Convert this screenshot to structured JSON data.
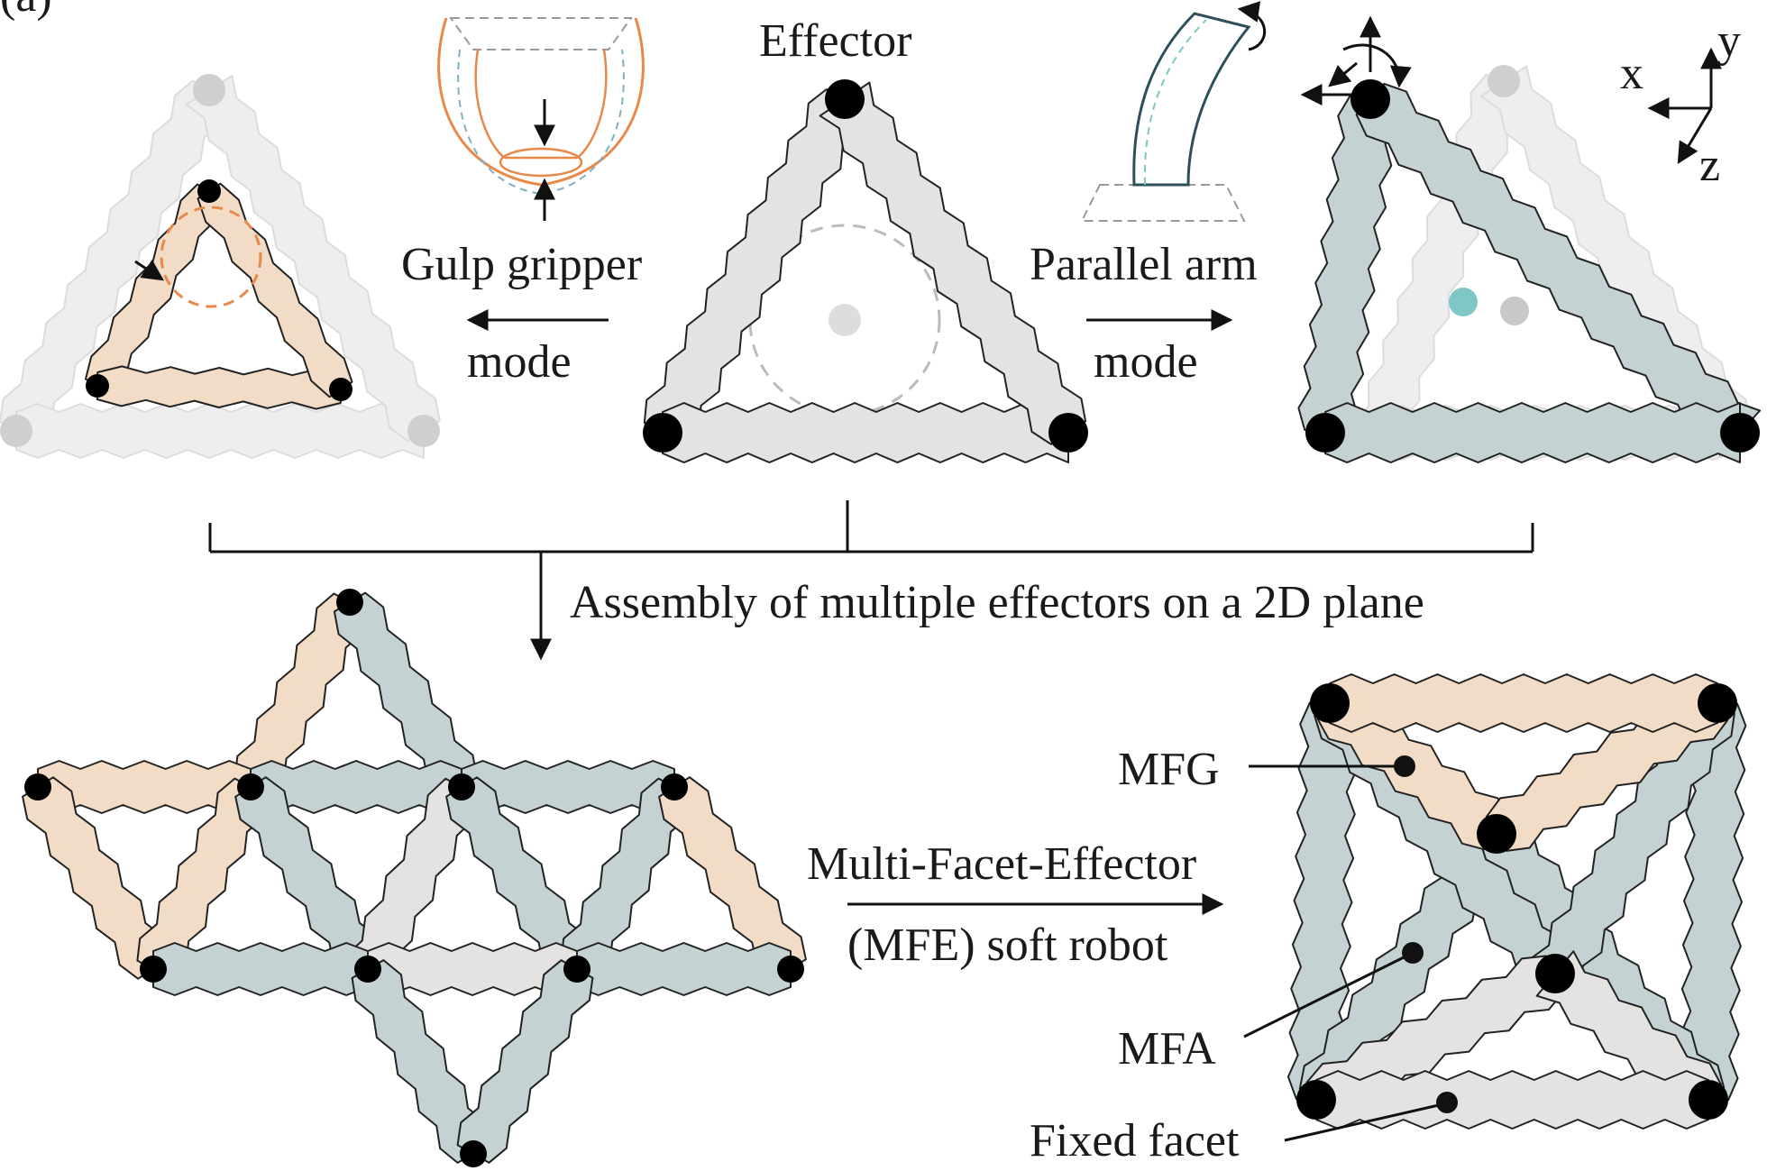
{
  "panel_label": "(a)",
  "top": {
    "effector_label": "Effector",
    "left_mode": {
      "line1": "Gulp gripper",
      "line2": "mode"
    },
    "right_mode": {
      "line1": "Parallel arm",
      "line2": "mode"
    },
    "axes": {
      "x": "x",
      "y": "y",
      "z": "z"
    }
  },
  "assembly_label": "Assembly of multiple effectors on a 2D plane",
  "transform_label": {
    "line1": "Multi-Facet-Effector",
    "line2": "(MFE) soft robot"
  },
  "callouts": {
    "mfg": "MFG",
    "mfa": "MFA",
    "fixed": "Fixed facet"
  },
  "colors": {
    "peach": "#f3dcc6",
    "grey_blue": "#c5d2d3",
    "light_grey": "#e5e3e1",
    "ghost": "#eeeeee",
    "accent_orange": "#e8884a",
    "accent_teal": "#7ec7c6",
    "node": "#000000"
  }
}
